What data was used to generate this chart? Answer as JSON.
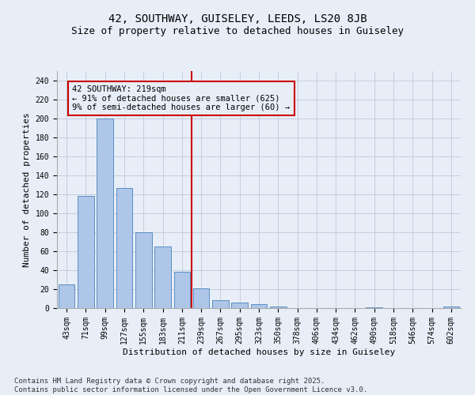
{
  "title1": "42, SOUTHWAY, GUISELEY, LEEDS, LS20 8JB",
  "title2": "Size of property relative to detached houses in Guiseley",
  "xlabel": "Distribution of detached houses by size in Guiseley",
  "ylabel": "Number of detached properties",
  "bar_labels": [
    "43sqm",
    "71sqm",
    "99sqm",
    "127sqm",
    "155sqm",
    "183sqm",
    "211sqm",
    "239sqm",
    "267sqm",
    "295sqm",
    "323sqm",
    "350sqm",
    "378sqm",
    "406sqm",
    "434sqm",
    "462sqm",
    "490sqm",
    "518sqm",
    "546sqm",
    "574sqm",
    "602sqm"
  ],
  "bar_values": [
    25,
    118,
    200,
    127,
    80,
    65,
    38,
    21,
    8,
    6,
    4,
    2,
    0,
    0,
    0,
    0,
    1,
    0,
    0,
    0,
    2
  ],
  "bar_color": "#aec6e8",
  "bar_edgecolor": "#5a8fc2",
  "background_color": "#e8eef8",
  "vline_x": 6.5,
  "vline_color": "#cc0000",
  "annotation_text": "42 SOUTHWAY: 219sqm\n← 91% of detached houses are smaller (625)\n9% of semi-detached houses are larger (60) →",
  "annotation_box_color": "#cc0000",
  "ylim": [
    0,
    250
  ],
  "yticks": [
    0,
    20,
    40,
    60,
    80,
    100,
    120,
    140,
    160,
    180,
    200,
    220,
    240
  ],
  "footer": "Contains HM Land Registry data © Crown copyright and database right 2025.\nContains public sector information licensed under the Open Government Licence v3.0.",
  "grid_color": "#c0c8d8",
  "title1_fontsize": 10,
  "title2_fontsize": 9,
  "xlabel_fontsize": 8,
  "ylabel_fontsize": 8,
  "tick_fontsize": 7,
  "annotation_fontsize": 7.5,
  "footer_fontsize": 6.5
}
